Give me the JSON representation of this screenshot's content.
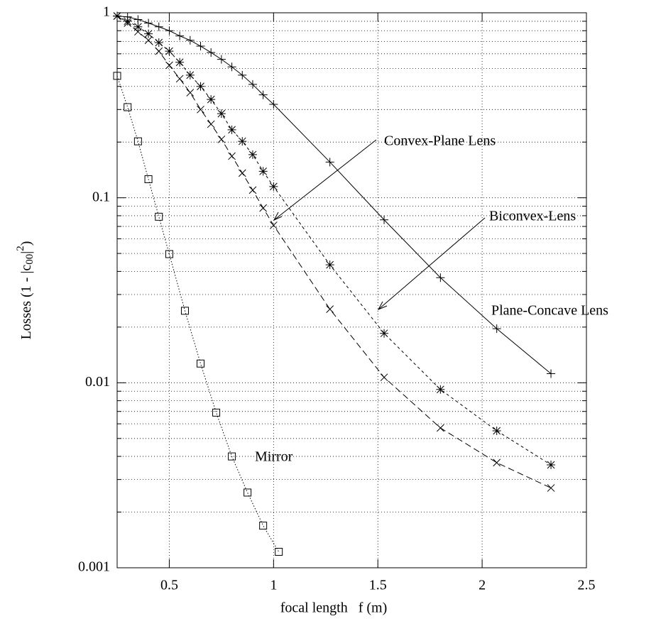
{
  "chart_data": {
    "type": "line",
    "x_label": "focal length   f (m)",
    "y_label": [
      "Losses (1 - |c",
      "00",
      "|",
      "2",
      ")"
    ],
    "xlim": [
      0.25,
      2.5
    ],
    "xticks": [
      0.5,
      1,
      1.5,
      2,
      2.5
    ],
    "ylim": [
      0.001,
      1
    ],
    "yticks": [
      0.001,
      0.01,
      0.1,
      1
    ],
    "y_log": true,
    "grid": true,
    "minor_grid": true,
    "series": [
      {
        "name": "Plane-Concave Lens",
        "marker": "plus",
        "dash": "solid",
        "color": "#000000",
        "x": [
          0.25,
          0.3,
          0.35,
          0.4,
          0.45,
          0.5,
          0.55,
          0.6,
          0.65,
          0.7,
          0.75,
          0.8,
          0.85,
          0.9,
          0.95,
          1.0,
          1.27,
          1.53,
          1.8,
          2.07,
          2.33
        ],
        "values": [
          0.96,
          0.95,
          0.92,
          0.88,
          0.84,
          0.8,
          0.75,
          0.71,
          0.66,
          0.61,
          0.56,
          0.51,
          0.46,
          0.41,
          0.36,
          0.32,
          0.156,
          0.076,
          0.037,
          0.0196,
          0.0112
        ]
      },
      {
        "name": "Biconvex-Lens",
        "marker": "star",
        "dash": "short",
        "color": "#000000",
        "x": [
          0.25,
          0.3,
          0.35,
          0.4,
          0.45,
          0.5,
          0.55,
          0.6,
          0.65,
          0.7,
          0.75,
          0.8,
          0.85,
          0.9,
          0.95,
          1.0,
          1.27,
          1.53,
          1.8,
          2.07,
          2.33
        ],
        "values": [
          0.96,
          0.9,
          0.84,
          0.77,
          0.69,
          0.62,
          0.54,
          0.46,
          0.4,
          0.34,
          0.285,
          0.233,
          0.202,
          0.171,
          0.139,
          0.115,
          0.0434,
          0.0185,
          0.0092,
          0.0055,
          0.0036
        ]
      },
      {
        "name": "Convex-Plane Lens",
        "marker": "cross",
        "dash": "long",
        "color": "#000000",
        "x": [
          0.25,
          0.3,
          0.35,
          0.4,
          0.45,
          0.5,
          0.55,
          0.6,
          0.65,
          0.7,
          0.75,
          0.8,
          0.85,
          0.9,
          0.95,
          1.0,
          1.27,
          1.53,
          1.8,
          2.07,
          2.33
        ],
        "values": [
          0.96,
          0.88,
          0.79,
          0.71,
          0.62,
          0.52,
          0.44,
          0.37,
          0.3,
          0.25,
          0.207,
          0.168,
          0.136,
          0.11,
          0.088,
          0.071,
          0.025,
          0.0107,
          0.0057,
          0.0037,
          0.0027
        ]
      },
      {
        "name": "Mirror",
        "marker": "square",
        "dash": "dotted",
        "color": "#000000",
        "x": [
          0.25,
          0.3,
          0.35,
          0.4,
          0.45,
          0.5,
          0.575,
          0.65,
          0.725,
          0.8,
          0.875,
          0.95,
          1.025
        ],
        "values": [
          0.456,
          0.309,
          0.202,
          0.126,
          0.079,
          0.0496,
          0.0245,
          0.0127,
          0.0069,
          0.004,
          0.00255,
          0.00169,
          0.00122
        ]
      }
    ]
  }
}
